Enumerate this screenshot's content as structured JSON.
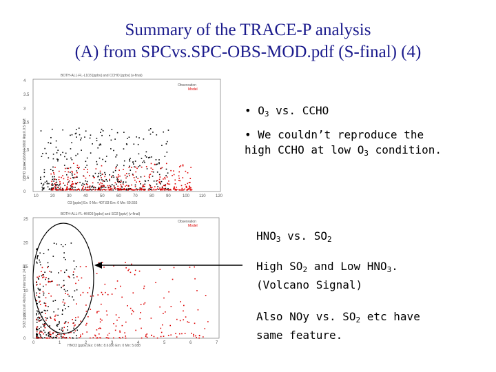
{
  "slide": {
    "title_line1": "Summary of the TRACE-P analysis",
    "title_line2": "(A)  from SPCvs.SPC-OBS-MOD.pdf (S-final) (4)",
    "colors": {
      "title": "#1a1a8c",
      "observation": "#000000",
      "model": "#dd0000"
    }
  },
  "notes": {
    "o3_vs_ccho_bullet": "• ",
    "o3_vs_ccho_o": "O",
    "o3_vs_ccho_sub": "3",
    "o3_vs_ccho_rest": " vs. CCHO",
    "reproduce_bullet": "• ",
    "reproduce_line1": "We couldn’t reproduce the",
    "reproduce_line2a": "high CCHO at low O",
    "reproduce_line2sub": "3",
    "reproduce_line2b": " condition.",
    "hno3_a": "HNO",
    "hno3_sub": "3",
    "hno3_b": " vs. SO",
    "hno3_sub2": "2",
    "volcano_a": "High SO",
    "volcano_sub": "2",
    "volcano_b": " and Low HNO",
    "volcano_sub2": "3",
    "volcano_c": ".",
    "volcano_line2": "(Volcano Signal)",
    "noy_a": "Also NOy vs. SO",
    "noy_sub": "2",
    "noy_b": " etc have",
    "noy_line2": "same feature."
  },
  "plot1": {
    "header": "BOTH-ALL-FL-L103 [ppbv] and CCHO [ppbv] (v-final)",
    "legend": [
      "Observation",
      "Model"
    ],
    "x_ticks": [
      "10",
      "20",
      "30",
      "40",
      "50",
      "60",
      "70",
      "80",
      "90",
      "100",
      "110",
      "120"
    ],
    "y_ticks": [
      "0",
      "0.5",
      "1",
      "1.5",
      "2",
      "2.5",
      "3",
      "3.5",
      "4"
    ],
    "ylabel": "CCHO [ppbv] (MxN:0.0868 Pm:0.0.5 GM:",
    "xlabel": "O3 [ppbv] Ex: 0 Mx: 407.83   Em: 0 Mn: 69.555"
  },
  "plot2": {
    "header": "BOTH-ALL-FL-HNO3 [ppbv] and SO2 [pptv] (v-final)",
    "legend": [
      "Observation",
      "Model"
    ],
    "x_ticks": [
      "0",
      "1",
      "2",
      "3",
      "4",
      "5",
      "6",
      "7"
    ],
    "y_ticks": [
      "0",
      "5",
      "10",
      "15",
      "20",
      "25"
    ],
    "ylabel": "SO2 [pptv] (ns0.4ts0ss...) Intercept: 24.91",
    "xlabel": "HNO3 [ppbv] Ex: 0 Mx: 8.6186   Em: 0 Mn: 5.088"
  }
}
